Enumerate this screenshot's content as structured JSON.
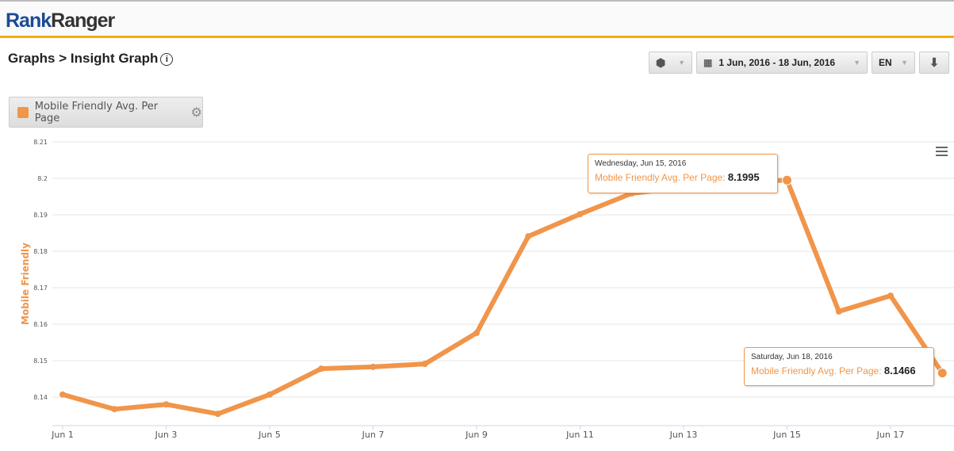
{
  "header": {
    "logo_a": "Rank",
    "logo_b": "Ranger"
  },
  "breadcrumb": "Graphs > Insight Graph",
  "info_icon": "info-icon",
  "toolbar": {
    "cube_icon": "cube-icon",
    "date_range": "1 Jun, 2016 - 18 Jun, 2016",
    "language": "EN",
    "download_icon": "download-icon"
  },
  "legend": {
    "label": "Mobile Friendly Avg. Per Page",
    "color": "#f0954a",
    "gear_icon": "gear-icon"
  },
  "tooltips": [
    {
      "date": "Wednesday, Jun 15, 2016",
      "series": "Mobile Friendly Avg. Per Page: ",
      "value": "8.1995"
    },
    {
      "date": "Saturday, Jun 18, 2016",
      "series": "Mobile Friendly Avg. Per Page: ",
      "value": "8.1466"
    }
  ],
  "chart_data": {
    "type": "line",
    "ylabel": "Mobile Friendly",
    "ylim": [
      8.1322,
      8.21
    ],
    "yticks": [
      "8.14",
      "8.15",
      "8.16",
      "8.17",
      "8.18",
      "8.19",
      "8.2",
      "8.21"
    ],
    "x": [
      "Jun 1",
      "Jun 2",
      "Jun 3",
      "Jun 4",
      "Jun 5",
      "Jun 6",
      "Jun 7",
      "Jun 8",
      "Jun 9",
      "Jun 10",
      "Jun 11",
      "Jun 12",
      "Jun 13",
      "Jun 14",
      "Jun 15",
      "Jun 16",
      "Jun 17",
      "Jun 18"
    ],
    "xtick_labels": [
      "Jun 1",
      "Jun 3",
      "Jun 5",
      "Jun 7",
      "Jun 9",
      "Jun 11",
      "Jun 13",
      "Jun 15",
      "Jun 17"
    ],
    "series": [
      {
        "name": "Mobile Friendly Avg. Per Page",
        "color": "#f0954a",
        "values": [
          8.1407,
          8.1367,
          8.138,
          8.1354,
          8.1407,
          8.1478,
          8.1483,
          8.1491,
          8.1576,
          8.1841,
          8.1902,
          8.1959,
          8.1975,
          8.199,
          8.1995,
          8.1635,
          8.1678,
          8.1466
        ]
      }
    ],
    "grid": true
  }
}
